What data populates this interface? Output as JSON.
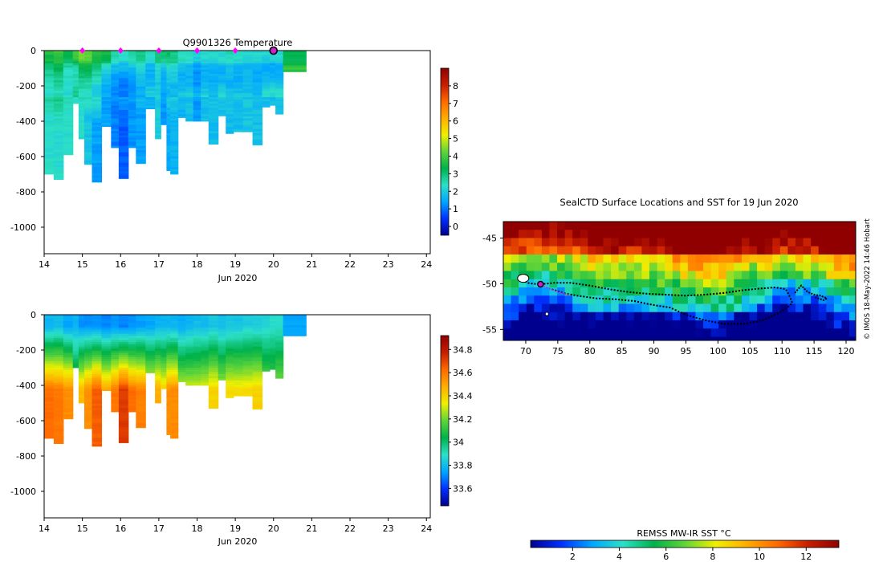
{
  "chart_data": [
    {
      "id": "temperature",
      "type": "heatmap",
      "title": "Q9901326  Temperature",
      "xlabel": "Jun 2020",
      "xticks": [
        14,
        15,
        16,
        17,
        18,
        19,
        20,
        21,
        22,
        23,
        24
      ],
      "xlim": [
        14,
        24.1
      ],
      "ylim": [
        -1150,
        0
      ],
      "yticks": [
        0,
        -200,
        -400,
        -600,
        -800,
        -1000
      ],
      "colorbar": {
        "min": -0.5,
        "max": 9,
        "ticks": [
          0,
          1,
          2,
          3,
          4,
          5,
          6,
          7,
          8
        ],
        "colors": [
          "#00008f",
          "#0030ff",
          "#00a6ff",
          "#2de0c8",
          "#00b24a",
          "#5fd43a",
          "#f0f000",
          "#ffae00",
          "#ff6a00",
          "#c81e00",
          "#900000"
        ]
      },
      "profile_markers": [
        15,
        16,
        17,
        18,
        19
      ],
      "current_position": 20,
      "profiles": [
        {
          "x": 14.0,
          "depth": 700,
          "surface": 3.6,
          "deep": 2.3
        },
        {
          "x": 14.25,
          "depth": 730,
          "surface": 3.9,
          "deep": 2.3
        },
        {
          "x": 14.5,
          "depth": 590,
          "surface": 3.3,
          "deep": 2.3
        },
        {
          "x": 14.75,
          "depth": 300,
          "surface": 4.2,
          "deep": 2.3
        },
        {
          "x": 14.9,
          "depth": 500,
          "surface": 4.6,
          "deep": 2.3
        },
        {
          "x": 15.05,
          "depth": 645,
          "surface": 4.4,
          "deep": 1.9
        },
        {
          "x": 15.25,
          "depth": 745,
          "surface": 3.8,
          "deep": 1.4
        },
        {
          "x": 15.5,
          "depth": 430,
          "surface": 3.6,
          "deep": 1.4
        },
        {
          "x": 15.75,
          "depth": 550,
          "surface": 2.6,
          "deep": 1.1
        },
        {
          "x": 15.95,
          "depth": 725,
          "surface": 2.3,
          "deep": 0.8
        },
        {
          "x": 16.2,
          "depth": 550,
          "surface": 2.6,
          "deep": 1.3
        },
        {
          "x": 16.4,
          "depth": 640,
          "surface": 2.9,
          "deep": 1.4
        },
        {
          "x": 16.65,
          "depth": 330,
          "surface": 2.6,
          "deep": 1.6
        },
        {
          "x": 16.9,
          "depth": 500,
          "surface": 3.0,
          "deep": 2.0
        },
        {
          "x": 17.05,
          "depth": 420,
          "surface": 3.1,
          "deep": 1.3
        },
        {
          "x": 17.2,
          "depth": 680,
          "surface": 3.1,
          "deep": 1.5
        },
        {
          "x": 17.3,
          "depth": 700,
          "surface": 2.9,
          "deep": 1.6
        },
        {
          "x": 17.5,
          "depth": 380,
          "surface": 2.6,
          "deep": 1.6
        },
        {
          "x": 17.7,
          "depth": 400,
          "surface": 2.4,
          "deep": 1.8
        },
        {
          "x": 17.9,
          "depth": 400,
          "surface": 2.2,
          "deep": 1.3
        },
        {
          "x": 18.1,
          "depth": 400,
          "surface": 2.3,
          "deep": 1.8
        },
        {
          "x": 18.3,
          "depth": 530,
          "surface": 2.3,
          "deep": 1.8
        },
        {
          "x": 18.55,
          "depth": 370,
          "surface": 2.3,
          "deep": 1.8
        },
        {
          "x": 18.75,
          "depth": 470,
          "surface": 2.5,
          "deep": 1.8
        },
        {
          "x": 18.95,
          "depth": 460,
          "surface": 2.3,
          "deep": 1.8
        },
        {
          "x": 19.2,
          "depth": 460,
          "surface": 2.3,
          "deep": 1.9
        },
        {
          "x": 19.45,
          "depth": 535,
          "surface": 2.2,
          "deep": 1.8
        },
        {
          "x": 19.7,
          "depth": 320,
          "surface": 2.2,
          "deep": 1.8
        },
        {
          "x": 19.9,
          "depth": 310,
          "surface": 2.1,
          "deep": 1.8
        },
        {
          "x": 20.05,
          "depth": 360,
          "surface": 2.2,
          "deep": 1.9
        },
        {
          "x": 20.25,
          "depth": 120,
          "surface": 3.3,
          "deep": 3.3
        }
      ]
    },
    {
      "id": "salinity",
      "type": "heatmap",
      "title": "",
      "xlabel": "Jun 2020",
      "xticks": [
        14,
        15,
        16,
        17,
        18,
        19,
        20,
        21,
        22,
        23,
        24
      ],
      "xlim": [
        14,
        24.1
      ],
      "ylim": [
        -1150,
        0
      ],
      "yticks": [
        0,
        -200,
        -400,
        -600,
        -800,
        -1000
      ],
      "colorbar": {
        "min": 33.45,
        "max": 34.92,
        "ticks": [
          33.6,
          33.8,
          34,
          34.2,
          34.4,
          34.6,
          34.8
        ],
        "colors": [
          "#00008f",
          "#0030ff",
          "#00a6ff",
          "#2de0c8",
          "#00b24a",
          "#5fd43a",
          "#f0f000",
          "#ffae00",
          "#ff6a00",
          "#c81e00",
          "#900000"
        ]
      },
      "profiles": [
        {
          "x": 14.0,
          "depth": 700,
          "surface": 33.78,
          "deep": 34.62
        },
        {
          "x": 14.25,
          "depth": 730,
          "surface": 33.8,
          "deep": 34.6
        },
        {
          "x": 14.5,
          "depth": 590,
          "surface": 33.75,
          "deep": 34.55
        },
        {
          "x": 14.75,
          "depth": 300,
          "surface": 33.78,
          "deep": 34.2
        },
        {
          "x": 14.9,
          "depth": 500,
          "surface": 33.72,
          "deep": 34.45
        },
        {
          "x": 15.05,
          "depth": 645,
          "surface": 33.72,
          "deep": 34.55
        },
        {
          "x": 15.25,
          "depth": 745,
          "surface": 33.72,
          "deep": 34.65
        },
        {
          "x": 15.5,
          "depth": 430,
          "surface": 33.7,
          "deep": 34.5
        },
        {
          "x": 15.75,
          "depth": 550,
          "surface": 33.72,
          "deep": 34.6
        },
        {
          "x": 15.95,
          "depth": 725,
          "surface": 33.7,
          "deep": 34.72
        },
        {
          "x": 16.2,
          "depth": 550,
          "surface": 33.72,
          "deep": 34.62
        },
        {
          "x": 16.4,
          "depth": 640,
          "surface": 33.74,
          "deep": 34.58
        },
        {
          "x": 16.65,
          "depth": 330,
          "surface": 33.75,
          "deep": 34.42
        },
        {
          "x": 16.9,
          "depth": 500,
          "surface": 33.78,
          "deep": 34.48
        },
        {
          "x": 17.05,
          "depth": 420,
          "surface": 33.78,
          "deep": 34.42
        },
        {
          "x": 17.2,
          "depth": 680,
          "surface": 33.78,
          "deep": 34.55
        },
        {
          "x": 17.3,
          "depth": 700,
          "surface": 33.78,
          "deep": 34.55
        },
        {
          "x": 17.5,
          "depth": 380,
          "surface": 33.76,
          "deep": 34.32
        },
        {
          "x": 17.7,
          "depth": 400,
          "surface": 33.78,
          "deep": 34.32
        },
        {
          "x": 17.9,
          "depth": 400,
          "surface": 33.8,
          "deep": 34.32
        },
        {
          "x": 18.1,
          "depth": 400,
          "surface": 33.8,
          "deep": 34.35
        },
        {
          "x": 18.3,
          "depth": 530,
          "surface": 33.82,
          "deep": 34.4
        },
        {
          "x": 18.55,
          "depth": 370,
          "surface": 33.8,
          "deep": 34.3
        },
        {
          "x": 18.75,
          "depth": 470,
          "surface": 33.82,
          "deep": 34.38
        },
        {
          "x": 18.95,
          "depth": 460,
          "surface": 33.82,
          "deep": 34.38
        },
        {
          "x": 19.2,
          "depth": 460,
          "surface": 33.84,
          "deep": 34.38
        },
        {
          "x": 19.45,
          "depth": 535,
          "surface": 33.84,
          "deep": 34.4
        },
        {
          "x": 19.7,
          "depth": 320,
          "surface": 33.86,
          "deep": 34.22
        },
        {
          "x": 19.9,
          "depth": 310,
          "surface": 33.88,
          "deep": 34.2
        },
        {
          "x": 20.05,
          "depth": 360,
          "surface": 33.88,
          "deep": 34.25
        },
        {
          "x": 20.25,
          "depth": 120,
          "surface": 33.75,
          "deep": 33.75
        }
      ]
    },
    {
      "id": "map",
      "type": "heatmap",
      "title": "SealCTD Surface Locations and SST for 19 Jun 2020",
      "xticks": [
        70,
        75,
        80,
        85,
        90,
        95,
        100,
        105,
        110,
        115,
        120
      ],
      "xlim": [
        66.5,
        121.5
      ],
      "yticks": [
        -45,
        -50,
        -55
      ],
      "ylim": [
        -56.2,
        -43.2
      ],
      "credit": "© IMOS 18-May-2022 14:46 Hobart",
      "colorbar": {
        "label": "REMSS MW-IR SST °C",
        "min": 0.2,
        "max": 13.4,
        "ticks": [
          2,
          4,
          6,
          8,
          10,
          12
        ],
        "colors": [
          "#00008f",
          "#0030ff",
          "#00a6ff",
          "#2de0c8",
          "#00b24a",
          "#5fd43a",
          "#f0f000",
          "#ffae00",
          "#ff6a00",
          "#c81e00",
          "#900000"
        ]
      },
      "track": [
        [
          69.3,
          -49.2
        ],
        [
          69.6,
          -49.6
        ],
        [
          70.2,
          -49.9
        ],
        [
          71.2,
          -50.0
        ],
        [
          72.3,
          -50.05
        ],
        [
          74.5,
          -49.9
        ],
        [
          77,
          -49.9
        ],
        [
          80,
          -50.2
        ],
        [
          83,
          -50.6
        ],
        [
          86,
          -50.9
        ],
        [
          89,
          -51.1
        ],
        [
          92,
          -51.2
        ],
        [
          95,
          -51.3
        ],
        [
          98,
          -51.2
        ],
        [
          101,
          -51.0
        ],
        [
          104,
          -50.7
        ],
        [
          107,
          -50.5
        ],
        [
          109,
          -50.4
        ],
        [
          110.6,
          -50.6
        ],
        [
          111.2,
          -51.4
        ],
        [
          111.6,
          -52.1
        ],
        [
          111.0,
          -52.5
        ],
        [
          109.5,
          -53.2
        ],
        [
          107,
          -54.0
        ],
        [
          104,
          -54.4
        ],
        [
          101,
          -54.4
        ],
        [
          98,
          -54.0
        ],
        [
          95,
          -53.4
        ],
        [
          92.5,
          -52.6
        ],
        [
          90.5,
          -52.4
        ],
        [
          89,
          -52.2
        ],
        [
          87,
          -51.9
        ],
        [
          84,
          -51.7
        ],
        [
          81,
          -51.6
        ],
        [
          78,
          -51.3
        ],
        [
          76,
          -51.05
        ],
        [
          75,
          -50.8
        ],
        [
          74,
          -50.6
        ]
      ],
      "recent_track": [
        [
          72.3,
          -50.05
        ],
        [
          73.5,
          -50.5
        ],
        [
          75,
          -50.9
        ],
        [
          77,
          -51.3
        ]
      ],
      "current_position": [
        72.3,
        -50.05
      ],
      "east_cluster": [
        [
          112,
          -51.0
        ],
        [
          113,
          -50.2
        ],
        [
          114,
          -50.9
        ],
        [
          115,
          -51.2
        ],
        [
          116,
          -51.3
        ],
        [
          117,
          -51.6
        ],
        [
          116.5,
          -51.8
        ],
        [
          115.2,
          -51.5
        ]
      ],
      "outlier": [
        73.3,
        -53.3
      ]
    }
  ]
}
